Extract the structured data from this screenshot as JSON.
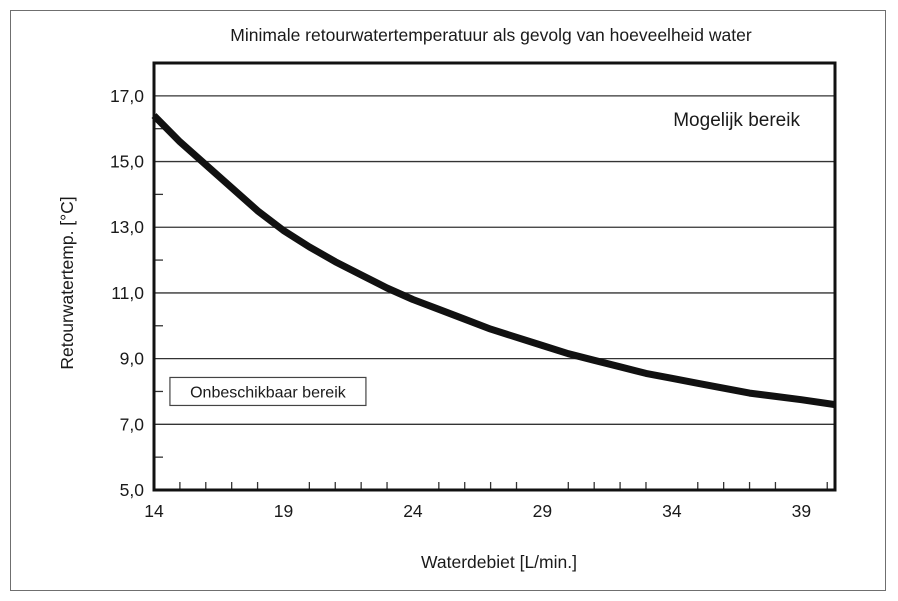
{
  "chart_data": {
    "type": "line",
    "title": "Minimale retourwatertemperatuur als gevolg van hoeveelheid water",
    "xlabel": "Waterdebiet [L/min.]",
    "ylabel": "Retourwatertemp. [°C]",
    "xlim": [
      14,
      40.3
    ],
    "ylim": [
      5,
      18
    ],
    "x_ticks": [
      14,
      19,
      24,
      29,
      34,
      39
    ],
    "x_tick_labels": [
      "14",
      "19",
      "24",
      "29",
      "34",
      "39"
    ],
    "y_ticks": [
      5,
      7,
      9,
      11,
      13,
      15,
      17
    ],
    "y_tick_labels": [
      "5,0",
      "7,0",
      "9,0",
      "11,0",
      "13,0",
      "15,0",
      "17,0"
    ],
    "grid": "horizontal",
    "series": [
      {
        "x": [
          14,
          15,
          16,
          17,
          18,
          19,
          20,
          21,
          22,
          23,
          24,
          25,
          26,
          27,
          28,
          29,
          30,
          31,
          32,
          33,
          34,
          35,
          36,
          37,
          38,
          39,
          40.3
        ],
        "y": [
          16.4,
          15.6,
          14.9,
          14.2,
          13.5,
          12.9,
          12.4,
          11.95,
          11.55,
          11.15,
          10.8,
          10.5,
          10.2,
          9.9,
          9.65,
          9.4,
          9.15,
          8.95,
          8.75,
          8.55,
          8.4,
          8.25,
          8.1,
          7.95,
          7.85,
          7.75,
          7.6
        ],
        "color": "#111111"
      }
    ],
    "annotations": [
      {
        "text": "Mogelijk bereik",
        "x": 36.5,
        "y": 16.3,
        "boxed": false
      },
      {
        "text": "Onbeschikbaar bereik",
        "x": 18.4,
        "y": 8.0,
        "boxed": true
      }
    ]
  }
}
